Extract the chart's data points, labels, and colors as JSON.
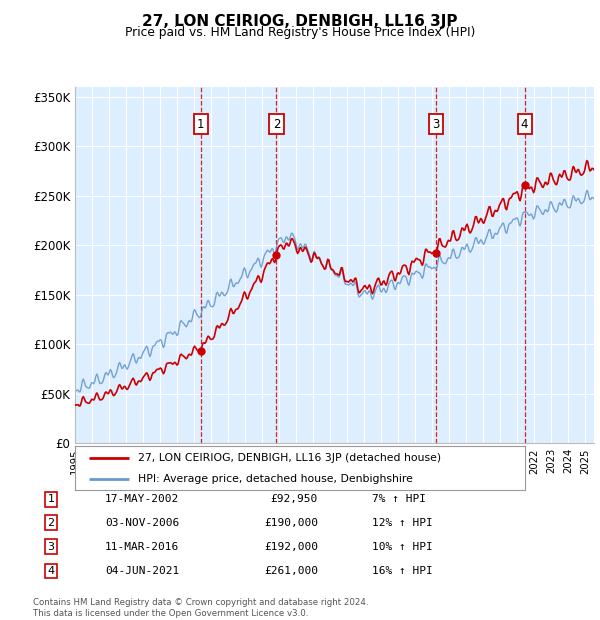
{
  "title": "27, LON CEIRIOG, DENBIGH, LL16 3JP",
  "subtitle": "Price paid vs. HM Land Registry's House Price Index (HPI)",
  "background_color": "#ffffff",
  "plot_bg_color": "#ddeeff",
  "grid_color": "#ffffff",
  "ylim": [
    0,
    360000
  ],
  "yticks": [
    0,
    50000,
    100000,
    150000,
    200000,
    250000,
    300000,
    350000
  ],
  "ytick_labels": [
    "£0",
    "£50K",
    "£100K",
    "£150K",
    "£200K",
    "£250K",
    "£300K",
    "£350K"
  ],
  "sale_dates_num": [
    2002.38,
    2006.84,
    2016.19,
    2021.42
  ],
  "sale_prices": [
    92950,
    190000,
    192000,
    261000
  ],
  "sale_labels": [
    "1",
    "2",
    "3",
    "4"
  ],
  "vline_color": "#cc0000",
  "red_line_color": "#cc0000",
  "blue_line_color": "#6699cc",
  "legend_entries": [
    "27, LON CEIRIOG, DENBIGH, LL16 3JP (detached house)",
    "HPI: Average price, detached house, Denbighshire"
  ],
  "table_rows": [
    [
      "1",
      "17-MAY-2002",
      "£92,950",
      "7% ↑ HPI"
    ],
    [
      "2",
      "03-NOV-2006",
      "£190,000",
      "12% ↑ HPI"
    ],
    [
      "3",
      "11-MAR-2016",
      "£192,000",
      "10% ↑ HPI"
    ],
    [
      "4",
      "04-JUN-2021",
      "£261,000",
      "16% ↑ HPI"
    ]
  ],
  "footnote": "Contains HM Land Registry data © Crown copyright and database right 2024.\nThis data is licensed under the Open Government Licence v3.0.",
  "xmin": 1995.0,
  "xmax": 2025.5
}
